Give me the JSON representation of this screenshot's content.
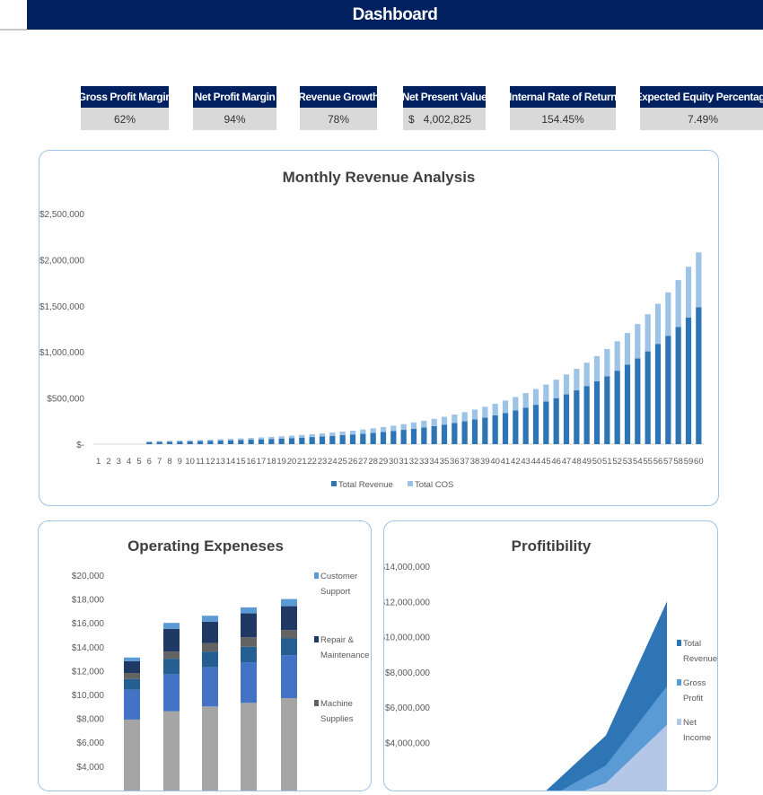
{
  "header": {
    "title": "Dashboard",
    "bg_color": "#002060"
  },
  "kpis": [
    {
      "label": "Gross Profit Margin",
      "value": "62%"
    },
    {
      "label": "Net Profit Margin",
      "value": "94%"
    },
    {
      "label": "Revenue Growth",
      "value": "78%"
    },
    {
      "label": "Net Present Value",
      "currency": "$",
      "value": "4,002,825"
    },
    {
      "label": "Internal Rate of Return",
      "value": "154.45%"
    },
    {
      "label": "Expected Equity Percentage",
      "value": "7.49%"
    }
  ],
  "chart_data": [
    {
      "type": "bar",
      "stacked": true,
      "title": "Monthly Revenue Analysis",
      "ylim": [
        0,
        2500000
      ],
      "yticks": [
        "$-",
        "$500,000",
        "$1,000,000",
        "$1,500,000",
        "$2,000,000",
        "$2,500,000"
      ],
      "categories": [
        1,
        2,
        3,
        4,
        5,
        6,
        7,
        8,
        9,
        10,
        11,
        12,
        13,
        14,
        15,
        16,
        17,
        18,
        19,
        20,
        21,
        22,
        23,
        24,
        25,
        26,
        27,
        28,
        29,
        30,
        31,
        32,
        33,
        34,
        35,
        36,
        37,
        38,
        39,
        40,
        41,
        42,
        43,
        44,
        45,
        46,
        47,
        48,
        49,
        50,
        51,
        52,
        53,
        54,
        55,
        56,
        57,
        58,
        59,
        60
      ],
      "legend": "bottom",
      "series": [
        {
          "name": "Total Revenue",
          "color": "#2e75b6",
          "values": [
            0,
            0,
            0,
            0,
            0,
            22100,
            23900,
            25900,
            28000,
            30200,
            32700,
            35300,
            38200,
            41300,
            44600,
            48200,
            52100,
            56400,
            60900,
            65900,
            71200,
            77000,
            83200,
            89900,
            97200,
            105100,
            113600,
            122800,
            132800,
            143500,
            155200,
            167700,
            181300,
            196000,
            211900,
            229100,
            247600,
            267700,
            289400,
            312800,
            338100,
            365500,
            395100,
            427100,
            461700,
            499100,
            539500,
            583200,
            630400,
            681500,
            736700,
            796400,
            860900,
            930600,
            1006000,
            1087500,
            1175600,
            1270800,
            1373700,
            1485000
          ]
        },
        {
          "name": "Total COS",
          "color": "#9dc3e6",
          "values": [
            0,
            0,
            0,
            0,
            0,
            8800,
            9600,
            10400,
            11200,
            12100,
            13100,
            14100,
            15300,
            16500,
            17800,
            19300,
            20800,
            22600,
            24400,
            26400,
            28500,
            30800,
            33300,
            36000,
            38900,
            42000,
            45400,
            49100,
            53100,
            57400,
            62100,
            67100,
            72500,
            78400,
            84800,
            91600,
            99000,
            107100,
            115800,
            125100,
            135200,
            146200,
            158000,
            170800,
            184700,
            199600,
            215800,
            233300,
            252200,
            272600,
            294700,
            318600,
            344400,
            372200,
            402400,
            435000,
            470200,
            508300,
            549500,
            594000
          ]
        }
      ]
    },
    {
      "type": "bar",
      "stacked": true,
      "title": "Operating Expeneses",
      "yticks": [
        "$4,000",
        "$6,000",
        "$8,000",
        "$10,000",
        "$12,000",
        "$14,000",
        "$16,000",
        "$18,000",
        "$20,000"
      ],
      "ylim": [
        0,
        20000
      ],
      "legend": "right",
      "series": [
        {
          "name": "",
          "color": "#a5a5a5",
          "values": [
            7900,
            8600,
            9000,
            9300,
            9700
          ]
        },
        {
          "name": "",
          "color": "#4472c4",
          "values": [
            2500,
            3100,
            3300,
            3400,
            3600
          ]
        },
        {
          "name": "",
          "color": "#255e91",
          "values": [
            900,
            1300,
            1300,
            1300,
            1400
          ]
        },
        {
          "name": "Machine Supplies",
          "color": "#636363",
          "values": [
            500,
            600,
            700,
            800,
            700
          ]
        },
        {
          "name": "Repair & Maintenance",
          "color": "#203864",
          "values": [
            1000,
            1900,
            1800,
            2000,
            2000
          ]
        },
        {
          "name": "Customer Support",
          "color": "#5b9bd5",
          "values": [
            300,
            500,
            500,
            500,
            600
          ]
        }
      ]
    },
    {
      "type": "area",
      "title": "Profitibility",
      "yticks": [
        "$4,000,000",
        "$6,000,000",
        "$8,000,000",
        "$10,000,000",
        "$12,000,000",
        "$14,000,000"
      ],
      "ylim": [
        0,
        14000000
      ],
      "legend": "right",
      "series": [
        {
          "name": "Total Revenue",
          "color": "#2e75b6",
          "values": [
            200000,
            700000,
            1200000,
            4400000,
            12000000
          ]
        },
        {
          "name": "Gross Profit",
          "color": "#5b9bd5",
          "values": [
            120000,
            430000,
            750000,
            2700000,
            7200000
          ]
        },
        {
          "name": "Net Income",
          "color": "#b4c7e7",
          "values": [
            70000,
            280000,
            480000,
            1700000,
            5000000
          ]
        }
      ]
    }
  ]
}
